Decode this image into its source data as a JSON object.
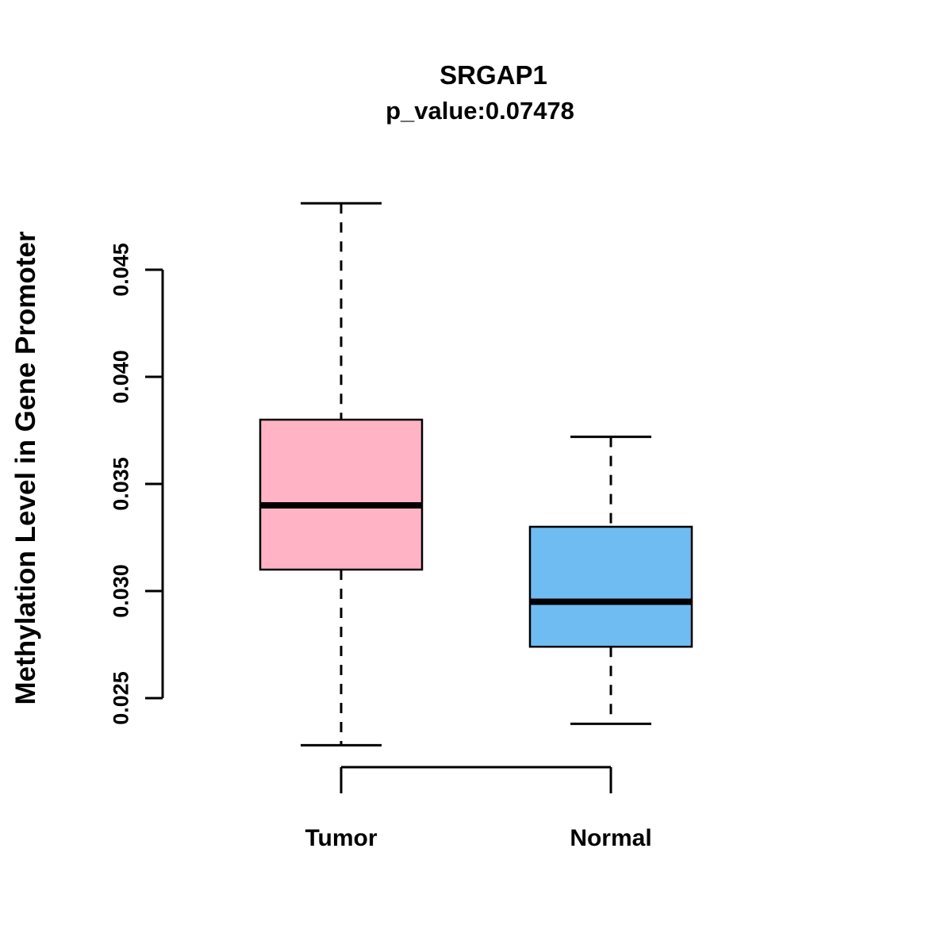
{
  "title": "SRGAP1",
  "subtitle": "p_value:0.07478",
  "ylabel": "Methylation Level in Gene Promoter",
  "chart_data": {
    "type": "boxplot",
    "title": "SRGAP1",
    "subtitle": "p_value:0.07478",
    "ylabel": "Methylation Level in Gene Promoter",
    "xlabel": "",
    "categories": [
      "Tumor",
      "Normal"
    ],
    "yticks": [
      "0.025",
      "0.030",
      "0.035",
      "0.040",
      "0.045"
    ],
    "ylim": [
      0.0225,
      0.0485
    ],
    "grid": false,
    "legend": "none",
    "series": [
      {
        "name": "Tumor",
        "color": "#FFB3C5",
        "lower_whisker": 0.0228,
        "q1": 0.031,
        "median": 0.034,
        "q3": 0.038,
        "upper_whisker": 0.0481
      },
      {
        "name": "Normal",
        "color": "#6FBCF2",
        "lower_whisker": 0.0238,
        "q1": 0.0274,
        "median": 0.0295,
        "q3": 0.033,
        "upper_whisker": 0.0372
      }
    ]
  }
}
